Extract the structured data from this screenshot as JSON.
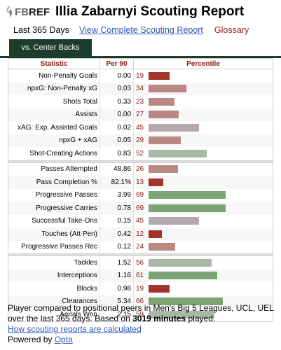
{
  "header": {
    "logo_fb": "FB",
    "logo_ref": "REF",
    "title": "Illia Zabarnyi Scouting Report"
  },
  "subnav": {
    "period": "Last 365 Days",
    "complete_link": "View Complete Scouting Report",
    "glossary": "Glossary"
  },
  "tab": {
    "label": "vs. Center Backs"
  },
  "table": {
    "headers": {
      "statistic": "Statistic",
      "per90": "Per 90",
      "percentile": "Percentile"
    },
    "groups": [
      [
        {
          "stat": "Non-Penalty Goals",
          "per90": "0.00",
          "pct": 19
        },
        {
          "stat": "npxG: Non-Penalty xG",
          "per90": "0.03",
          "pct": 34
        },
        {
          "stat": "Shots Total",
          "per90": "0.33",
          "pct": 23
        },
        {
          "stat": "Assists",
          "per90": "0.00",
          "pct": 27
        },
        {
          "stat": "xAG: Exp. Assisted Goals",
          "per90": "0.02",
          "pct": 45
        },
        {
          "stat": "npxG + xAG",
          "per90": "0.05",
          "pct": 29
        },
        {
          "stat": "Shot-Creating Actions",
          "per90": "0.83",
          "pct": 52
        }
      ],
      [
        {
          "stat": "Passes Attempted",
          "per90": "48.86",
          "pct": 26
        },
        {
          "stat": "Pass Completion %",
          "per90": "82.1%",
          "pct": 13
        },
        {
          "stat": "Progressive Passes",
          "per90": "3.99",
          "pct": 69
        },
        {
          "stat": "Progressive Carries",
          "per90": "0.78",
          "pct": 69
        },
        {
          "stat": "Successful Take-Ons",
          "per90": "0.15",
          "pct": 45
        },
        {
          "stat": "Touches (Att Pen)",
          "per90": "0.42",
          "pct": 12
        },
        {
          "stat": "Progressive Passes Rec",
          "per90": "0.12",
          "pct": 24
        }
      ],
      [
        {
          "stat": "Tackles",
          "per90": "1.52",
          "pct": 56
        },
        {
          "stat": "Interceptions",
          "per90": "1.16",
          "pct": 61
        },
        {
          "stat": "Blocks",
          "per90": "0.98",
          "pct": 19
        },
        {
          "stat": "Clearances",
          "per90": "5.34",
          "pct": 66
        },
        {
          "stat": "Aerials Won",
          "per90": "2.15",
          "pct": 59
        }
      ]
    ]
  },
  "colors": {
    "low": "#a1342b",
    "low_mid": "#b98784",
    "mid": "#b5a9ab",
    "high_mid": "#a9b7a6",
    "high": "#7ca374",
    "tab_bg": "#1d3d2b",
    "accent_red": "#8c1c13",
    "link": "#2b57b8"
  },
  "footer": {
    "note_prefix": "Player compared to positional peers in Men's Big 5 Leagues, UCL, UEL over the last 365 days. Based on ",
    "minutes": "3019 minutes",
    "note_suffix": " played.",
    "how_link": "How scouting reports are calculated",
    "powered_prefix": "Powered by ",
    "powered_link": "Opta"
  }
}
